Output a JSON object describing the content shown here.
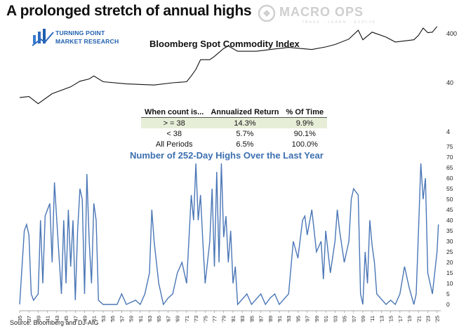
{
  "header": {
    "title": "A prolonged stretch of annual highs",
    "logo_tp_line1": "TURNING POINT",
    "logo_tp_line2": "MARKET RESEARCH",
    "logo_mo_name": "MACRO OPS",
    "logo_mo_tagline": "TRADE · LEARN · EVOLVE"
  },
  "source": "Source: Bloomberg and DJ-AIG",
  "colors": {
    "index_line": "#111111",
    "highs_line": "#4a76b6",
    "table_highlight": "#e6eed8"
  },
  "stats_table": {
    "headers": [
      "When count is...",
      "Annualized Return",
      "% Of Time"
    ],
    "rows": [
      [
        "> = 38",
        "14.3%",
        "9.9%"
      ],
      [
        "< 38",
        "5.7%",
        "90.1%"
      ],
      [
        "All Periods",
        "6.5%",
        "100.0%"
      ]
    ]
  },
  "chart_data": [
    {
      "type": "line",
      "title": "Bloomberg Spot Commodity Index",
      "scale": "log",
      "ylim": [
        4,
        600
      ],
      "yticks": [
        "400",
        "40",
        "4"
      ],
      "x": [
        1935,
        1937,
        1939,
        1942,
        1946,
        1948,
        1950,
        1951,
        1953,
        1958,
        1964,
        1968,
        1971,
        1972,
        1973,
        1974,
        1976,
        1977,
        1979,
        1980,
        1982,
        1986,
        1988,
        1990,
        1993,
        1998,
        2001,
        2003,
        2006,
        2008,
        2009,
        2011,
        2014,
        2016,
        2020,
        2021,
        2022,
        2023,
        2024,
        2025
      ],
      "y": [
        20,
        21,
        15,
        24,
        33,
        43,
        48,
        55,
        42,
        38,
        36,
        40,
        42,
        55,
        75,
        118,
        118,
        138,
        200,
        225,
        175,
        175,
        185,
        195,
        210,
        190,
        215,
        240,
        310,
        470,
        300,
        430,
        340,
        270,
        300,
        370,
        520,
        420,
        430,
        560
      ]
    },
    {
      "type": "line",
      "title": "Number of 252-Day Highs Over the Last Year",
      "ylim": [
        0,
        75
      ],
      "yticks": [
        0,
        5,
        10,
        15,
        20,
        25,
        30,
        35,
        40,
        45,
        50,
        55,
        60,
        65,
        70,
        75
      ],
      "x_tick_labels": [
        "'35",
        "'37",
        "'39",
        "'41",
        "'43",
        "'45",
        "'47",
        "'49",
        "'51",
        "'53",
        "'55",
        "'57",
        "'59",
        "'61",
        "'63",
        "'65",
        "'67",
        "'69",
        "'71",
        "'73",
        "'75",
        "'77",
        "'79",
        "'81",
        "'83",
        "'85",
        "'87",
        "'89",
        "'91",
        "'93",
        "'95",
        "'97",
        "'99",
        "'01",
        "'03",
        "'05",
        "'07",
        "'09",
        "'11",
        "'13",
        "'15",
        "'17",
        "'19",
        "'21",
        "'23",
        "'25"
      ],
      "x": [
        1935,
        1936,
        1936.5,
        1937,
        1937.5,
        1938,
        1939,
        1939.5,
        1940,
        1940.5,
        1941,
        1941.5,
        1942,
        1942.5,
        1943,
        1944,
        1944.5,
        1945,
        1945.5,
        1946,
        1946.5,
        1947,
        1947.5,
        1948,
        1948.5,
        1949,
        1949.5,
        1950,
        1950.5,
        1951,
        1951.5,
        1952,
        1953,
        1956,
        1957,
        1958,
        1960,
        1961,
        1962,
        1963,
        1963.5,
        1964,
        1965,
        1966,
        1967,
        1968,
        1969,
        1970,
        1971,
        1972,
        1972.5,
        1973,
        1973.5,
        1974,
        1974.5,
        1975,
        1976,
        1976.5,
        1977,
        1977.5,
        1978,
        1978.5,
        1979,
        1979.5,
        1980,
        1980.5,
        1981,
        1981.5,
        1982,
        1984,
        1985,
        1987,
        1988,
        1989,
        1990,
        1991,
        1993,
        1994,
        1995,
        1996,
        1996.5,
        1997,
        1998,
        1999,
        2000,
        2000.5,
        2001,
        2002,
        2003,
        2003.5,
        2004,
        2005,
        2006,
        2006.5,
        2007,
        2008,
        2008.5,
        2009,
        2009.5,
        2010,
        2010.5,
        2011,
        2011.5,
        2012,
        2014,
        2015,
        2016,
        2017,
        2018,
        2019,
        2020,
        2020.5,
        2021,
        2021.5,
        2022,
        2022.5,
        2023,
        2023.5,
        2024,
        2024.5,
        2025,
        2025.3
      ],
      "y": [
        0,
        35,
        38,
        33,
        5,
        2,
        5,
        40,
        10,
        42,
        45,
        48,
        20,
        58,
        40,
        5,
        40,
        10,
        45,
        18,
        40,
        2,
        35,
        55,
        50,
        5,
        62,
        30,
        10,
        48,
        40,
        2,
        0,
        0,
        5,
        0,
        2,
        0,
        5,
        15,
        45,
        30,
        10,
        0,
        3,
        5,
        15,
        20,
        10,
        52,
        40,
        67,
        40,
        52,
        30,
        10,
        30,
        55,
        18,
        63,
        20,
        67,
        32,
        42,
        20,
        35,
        10,
        18,
        0,
        5,
        0,
        5,
        0,
        3,
        5,
        0,
        5,
        30,
        22,
        40,
        42,
        33,
        45,
        25,
        30,
        12,
        35,
        15,
        30,
        45,
        35,
        20,
        30,
        50,
        55,
        52,
        5,
        0,
        25,
        10,
        40,
        28,
        20,
        5,
        0,
        2,
        0,
        5,
        18,
        8,
        0,
        5,
        35,
        67,
        50,
        60,
        15,
        10,
        5,
        15,
        25,
        38
      ]
    }
  ]
}
